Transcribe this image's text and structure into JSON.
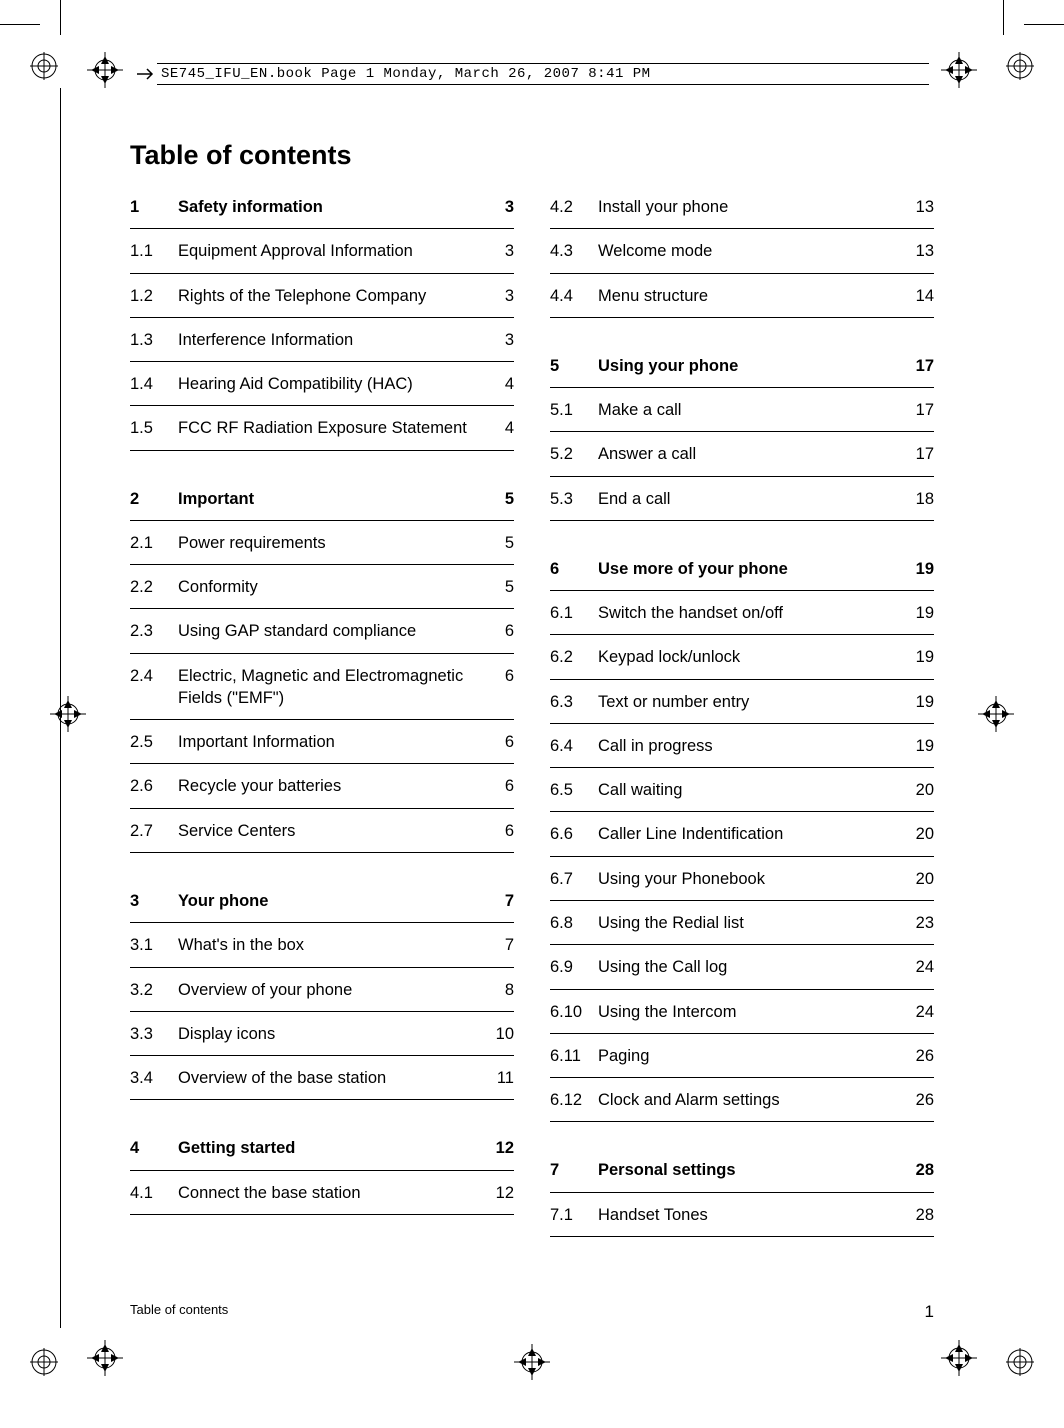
{
  "header_text": "SE745_IFU_EN.book  Page 1  Monday, March 26, 2007  8:41 PM",
  "toc_title": "Table of contents",
  "footer_label": "Table of contents",
  "footer_page": "1",
  "left_column": [
    {
      "num": "1",
      "label": "Safety information",
      "page": "3",
      "bold": true,
      "section_start": false
    },
    {
      "num": "1.1",
      "label": "Equipment Approval Information",
      "page": "3",
      "bold": false,
      "section_start": false
    },
    {
      "num": "1.2",
      "label": "Rights of the Telephone Company",
      "page": "3",
      "bold": false,
      "section_start": false
    },
    {
      "num": "1.3",
      "label": "Interference Information",
      "page": "3",
      "bold": false,
      "section_start": false
    },
    {
      "num": "1.4",
      "label": "Hearing Aid Compatibility (HAC)",
      "page": "4",
      "bold": false,
      "section_start": false
    },
    {
      "num": "1.5",
      "label": "FCC RF Radiation Exposure Statement",
      "page": "4",
      "bold": false,
      "section_start": false
    },
    {
      "num": "2",
      "label": "Important",
      "page": "5",
      "bold": true,
      "section_start": true
    },
    {
      "num": "2.1",
      "label": "Power requirements",
      "page": "5",
      "bold": false,
      "section_start": false
    },
    {
      "num": "2.2",
      "label": "Conformity",
      "page": "5",
      "bold": false,
      "section_start": false
    },
    {
      "num": "2.3",
      "label": "Using GAP standard compliance",
      "page": "6",
      "bold": false,
      "section_start": false
    },
    {
      "num": "2.4",
      "label": "Electric, Magnetic and Electromagnetic Fields (\"EMF\")",
      "page": "6",
      "bold": false,
      "section_start": false
    },
    {
      "num": "2.5",
      "label": "Important Information",
      "page": "6",
      "bold": false,
      "section_start": false
    },
    {
      "num": "2.6",
      "label": "Recycle your batteries",
      "page": "6",
      "bold": false,
      "section_start": false
    },
    {
      "num": "2.7",
      "label": "Service Centers",
      "page": "6",
      "bold": false,
      "section_start": false
    },
    {
      "num": "3",
      "label": "Your phone",
      "page": "7",
      "bold": true,
      "section_start": true
    },
    {
      "num": "3.1",
      "label": "What's in the box",
      "page": "7",
      "bold": false,
      "section_start": false
    },
    {
      "num": "3.2",
      "label": "Overview of your phone",
      "page": "8",
      "bold": false,
      "section_start": false
    },
    {
      "num": "3.3",
      "label": "Display icons",
      "page": "10",
      "bold": false,
      "section_start": false
    },
    {
      "num": "3.4",
      "label": "Overview of the base station",
      "page": "11",
      "bold": false,
      "section_start": false
    },
    {
      "num": "4",
      "label": "Getting started",
      "page": "12",
      "bold": true,
      "section_start": true
    },
    {
      "num": "4.1",
      "label": "Connect the base station",
      "page": "12",
      "bold": false,
      "section_start": false
    }
  ],
  "right_column": [
    {
      "num": "4.2",
      "label": "Install your phone",
      "page": "13",
      "bold": false,
      "section_start": false
    },
    {
      "num": "4.3",
      "label": "Welcome mode",
      "page": "13",
      "bold": false,
      "section_start": false
    },
    {
      "num": "4.4",
      "label": "Menu structure",
      "page": "14",
      "bold": false,
      "section_start": false
    },
    {
      "num": "5",
      "label": "Using your phone",
      "page": "17",
      "bold": true,
      "section_start": true
    },
    {
      "num": "5.1",
      "label": "Make a call",
      "page": "17",
      "bold": false,
      "section_start": false
    },
    {
      "num": "5.2",
      "label": "Answer a call",
      "page": "17",
      "bold": false,
      "section_start": false
    },
    {
      "num": "5.3",
      "label": "End a call",
      "page": "18",
      "bold": false,
      "section_start": false
    },
    {
      "num": "6",
      "label": "Use more of your phone",
      "page": "19",
      "bold": true,
      "section_start": true
    },
    {
      "num": "6.1",
      "label": "Switch the handset on/off",
      "page": "19",
      "bold": false,
      "section_start": false
    },
    {
      "num": "6.2",
      "label": "Keypad lock/unlock",
      "page": "19",
      "bold": false,
      "section_start": false
    },
    {
      "num": "6.3",
      "label": "Text or number entry",
      "page": "19",
      "bold": false,
      "section_start": false
    },
    {
      "num": "6.4",
      "label": "Call in progress",
      "page": "19",
      "bold": false,
      "section_start": false
    },
    {
      "num": "6.5",
      "label": "Call waiting",
      "page": "20",
      "bold": false,
      "section_start": false
    },
    {
      "num": "6.6",
      "label": "Caller Line Indentification",
      "page": "20",
      "bold": false,
      "section_start": false
    },
    {
      "num": "6.7",
      "label": "Using your Phonebook",
      "page": "20",
      "bold": false,
      "section_start": false
    },
    {
      "num": "6.8",
      "label": "Using the Redial list",
      "page": "23",
      "bold": false,
      "section_start": false
    },
    {
      "num": "6.9",
      "label": "Using the Call log",
      "page": "24",
      "bold": false,
      "section_start": false
    },
    {
      "num": "6.10",
      "label": "Using the Intercom",
      "page": "24",
      "bold": false,
      "section_start": false
    },
    {
      "num": "6.11",
      "label": "Paging",
      "page": "26",
      "bold": false,
      "section_start": false
    },
    {
      "num": "6.12",
      "label": "Clock and Alarm settings",
      "page": "26",
      "bold": false,
      "section_start": false
    },
    {
      "num": "7",
      "label": "Personal settings",
      "page": "28",
      "bold": true,
      "section_start": true
    },
    {
      "num": "7.1",
      "label": "Handset Tones",
      "page": "28",
      "bold": false,
      "section_start": false
    }
  ],
  "colors": {
    "text": "#000000",
    "background": "#ffffff",
    "rule": "#000000"
  }
}
